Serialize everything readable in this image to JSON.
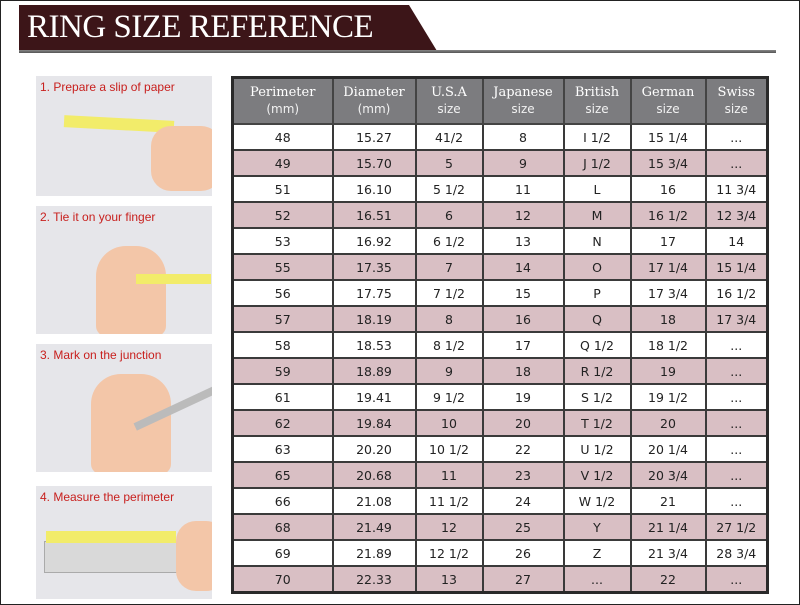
{
  "title": "RING SIZE REFERENCE",
  "steps": [
    "1. Prepare a slip of paper",
    "2. Tie it on your finger",
    "3. Mark on the junction",
    "4. Measure the perimeter"
  ],
  "colors": {
    "banner": "#3c1518",
    "header": "#7c7c7f",
    "row_alt": "#d9bfc4",
    "step_text": "#c8201e"
  },
  "table": {
    "headers": [
      {
        "main": "Perimeter",
        "sub": "(mm)"
      },
      {
        "main": "Diameter",
        "sub": "(mm)"
      },
      {
        "main": "U.S.A",
        "sub": "size"
      },
      {
        "main": "Japanese",
        "sub": "size"
      },
      {
        "main": "British",
        "sub": "size"
      },
      {
        "main": "German",
        "sub": "size"
      },
      {
        "main": "Swiss",
        "sub": "size"
      }
    ],
    "rows": [
      [
        "48",
        "15.27",
        "41/2",
        "8",
        "I 1/2",
        "15 1/4",
        "..."
      ],
      [
        "49",
        "15.70",
        "5",
        "9",
        "J 1/2",
        "15 3/4",
        "..."
      ],
      [
        "51",
        "16.10",
        "5 1/2",
        "11",
        "L",
        "16",
        "11 3/4"
      ],
      [
        "52",
        "16.51",
        "6",
        "12",
        "M",
        "16 1/2",
        "12 3/4"
      ],
      [
        "53",
        "16.92",
        "6 1/2",
        "13",
        "N",
        "17",
        "14"
      ],
      [
        "55",
        "17.35",
        "7",
        "14",
        "O",
        "17 1/4",
        "15 1/4"
      ],
      [
        "56",
        "17.75",
        "7 1/2",
        "15",
        "P",
        "17 3/4",
        "16 1/2"
      ],
      [
        "57",
        "18.19",
        "8",
        "16",
        "Q",
        "18",
        "17 3/4"
      ],
      [
        "58",
        "18.53",
        "8 1/2",
        "17",
        "Q 1/2",
        "18 1/2",
        "..."
      ],
      [
        "59",
        "18.89",
        "9",
        "18",
        "R 1/2",
        "19",
        "..."
      ],
      [
        "61",
        "19.41",
        "9 1/2",
        "19",
        "S 1/2",
        "19 1/2",
        "..."
      ],
      [
        "62",
        "19.84",
        "10",
        "20",
        "T 1/2",
        "20",
        "..."
      ],
      [
        "63",
        "20.20",
        "10 1/2",
        "22",
        "U 1/2",
        "20 1/4",
        "..."
      ],
      [
        "65",
        "20.68",
        "11",
        "23",
        "V 1/2",
        "20 3/4",
        "..."
      ],
      [
        "66",
        "21.08",
        "11 1/2",
        "24",
        "W 1/2",
        "21",
        "..."
      ],
      [
        "68",
        "21.49",
        "12",
        "25",
        "Y",
        "21 1/4",
        "27 1/2"
      ],
      [
        "69",
        "21.89",
        "12 1/2",
        "26",
        "Z",
        "21 3/4",
        "28 3/4"
      ],
      [
        "70",
        "22.33",
        "13",
        "27",
        "...",
        "22",
        "..."
      ]
    ]
  }
}
